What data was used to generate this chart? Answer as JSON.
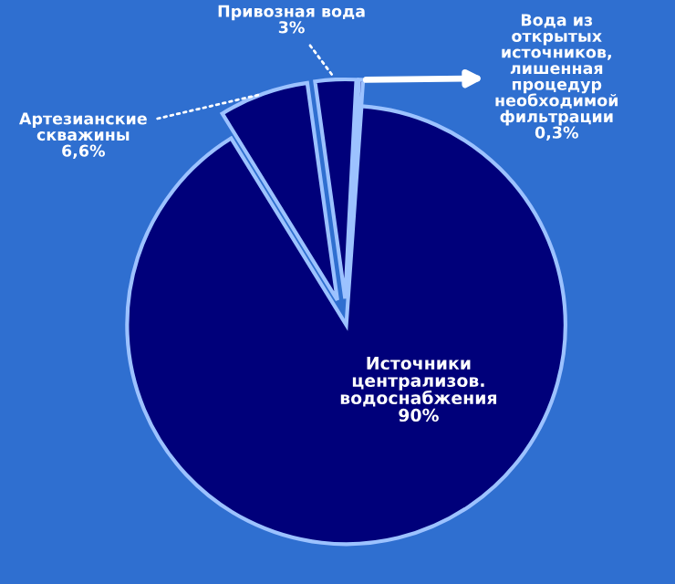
{
  "chart_data": {
    "type": "pie",
    "categories": [
      "Вода из\nоткрытых\nисточников,\nлишенная\nпроцедур\nнеобходимой\nфильтрации",
      "Привозная вода",
      "Артезианские\nскважины",
      "Источники\nцентрализов.\nводоснабжения"
    ],
    "values": [
      0.3,
      3,
      6.6,
      90
    ],
    "value_labels": [
      "0,3%",
      "3%",
      "6,6%",
      "90%"
    ],
    "colors": [
      "#00007a",
      "#00007a",
      "#00007a",
      "#00007a"
    ]
  }
}
